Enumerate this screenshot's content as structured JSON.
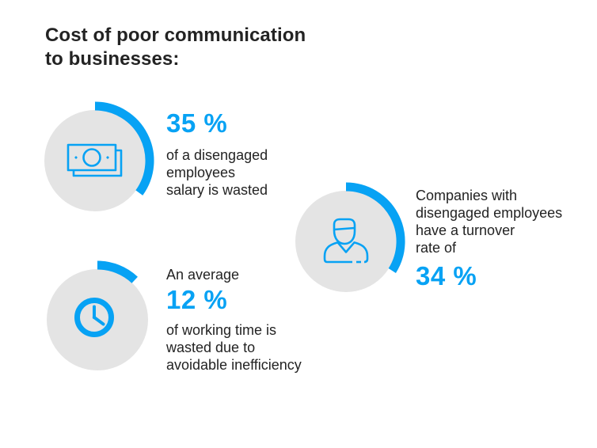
{
  "title": {
    "lines": [
      "Cost of poor communication",
      "to businesses:"
    ]
  },
  "colors": {
    "accent": "#07a2f4",
    "circle_bg": "#e4e4e4",
    "text": "#232323",
    "background": "#ffffff"
  },
  "stats": [
    {
      "id": "salary-wasted",
      "icon": "money-icon",
      "percent": 35,
      "value_label": "35 %",
      "intro_lines": [],
      "desc_lines": [
        "of a disengaged",
        "employees",
        "salary is wasted"
      ]
    },
    {
      "id": "turnover-rate",
      "icon": "person-icon",
      "percent": 34,
      "value_label": "34 %",
      "intro_lines": [
        "Companies with",
        "disengaged employees",
        "have a turnover",
        "rate of"
      ],
      "desc_lines": []
    },
    {
      "id": "working-time-wasted",
      "icon": "clock-icon",
      "percent": 12,
      "value_label": "12 %",
      "intro_lines": [
        "An average"
      ],
      "desc_lines": [
        "of working time is",
        "wasted due to",
        "avoidable inefficiency"
      ]
    }
  ],
  "chart_data": {
    "type": "gauge",
    "title": "Cost of poor communication to businesses:",
    "range": [
      0,
      100
    ],
    "unit": "%",
    "values": [
      {
        "value": 35,
        "label": "of a disengaged employees salary is wasted",
        "icon": "money"
      },
      {
        "value": 34,
        "label": "Companies with disengaged employees have a turnover rate of",
        "icon": "person"
      },
      {
        "value": 12,
        "label": "An average of working time is wasted due to avoidable inefficiency",
        "icon": "clock"
      }
    ]
  }
}
